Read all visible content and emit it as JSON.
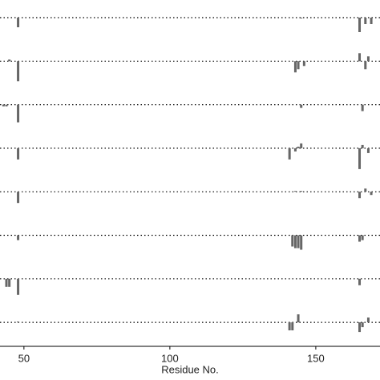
{
  "chart_data": {
    "type": "bar",
    "x_label": "Residue No.",
    "x": [
      43,
      44,
      45,
      46,
      48,
      49,
      141,
      142,
      143,
      144,
      145,
      146,
      165,
      166,
      167,
      168,
      169
    ],
    "xlim": [
      41.8,
      172
    ],
    "xticks": [
      50,
      100,
      150
    ],
    "ylim": [
      -1.35,
      1.35
    ],
    "color": "#666666",
    "series": [
      {
        "values": [
          0,
          0,
          0,
          0,
          -0.6,
          0,
          0,
          0,
          0,
          0,
          -0.05,
          0,
          -0.9,
          0,
          -0.4,
          0,
          -0.4
        ]
      },
      {
        "values": [
          0,
          0,
          0.1,
          0,
          -1.25,
          0,
          0,
          0,
          -0.7,
          -0.5,
          0,
          -0.3,
          0.5,
          0,
          -0.5,
          0.3,
          0
        ]
      },
      {
        "values": [
          -0.1,
          -0.1,
          0,
          0,
          -1.1,
          0,
          0,
          0,
          0,
          0,
          -0.2,
          0,
          0,
          -0.4,
          0,
          0,
          0
        ]
      },
      {
        "values": [
          0,
          0,
          0,
          0,
          -0.7,
          0,
          -0.7,
          0,
          -0.2,
          0.1,
          0.3,
          0,
          -1.3,
          0.2,
          0,
          -0.3,
          0
        ]
      },
      {
        "values": [
          0,
          0,
          0,
          0,
          -0.7,
          0,
          0,
          0,
          0.05,
          0,
          0.05,
          0,
          -0.4,
          0,
          0.2,
          0,
          -0.2
        ]
      },
      {
        "values": [
          0,
          0,
          0,
          0,
          -0.3,
          0,
          0,
          -0.7,
          -0.8,
          -0.8,
          -0.9,
          0,
          -0.4,
          -0.3,
          0,
          0,
          0
        ]
      },
      {
        "values": [
          0,
          -0.5,
          -0.5,
          0,
          -1.0,
          0,
          0,
          0,
          0,
          0,
          0,
          0,
          -0.4,
          0,
          0,
          0,
          0
        ]
      },
      {
        "values": [
          0,
          0,
          0,
          0,
          0.05,
          0,
          -0.5,
          -0.5,
          0,
          0.5,
          0,
          0,
          -0.6,
          -0.3,
          0,
          0.3,
          0
        ]
      }
    ]
  }
}
